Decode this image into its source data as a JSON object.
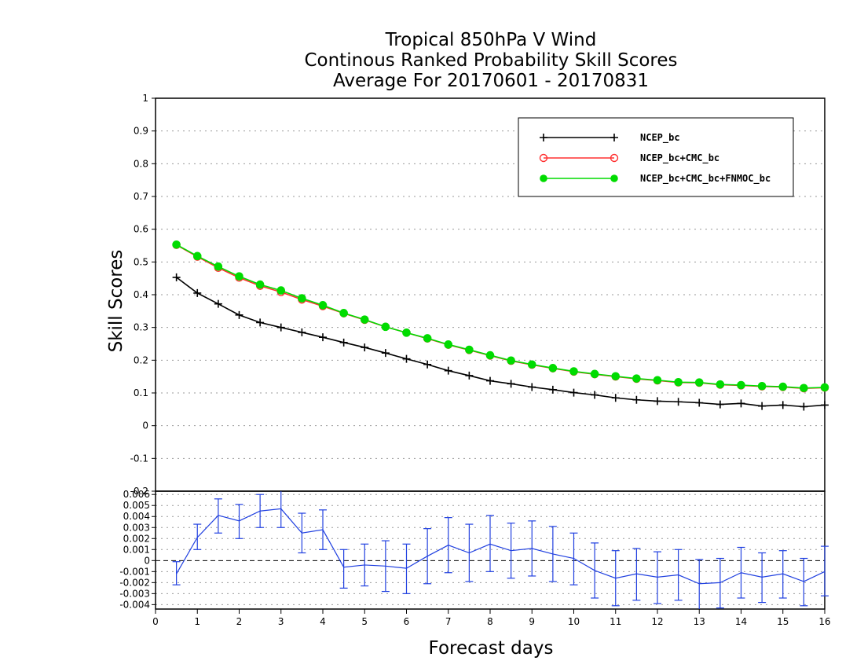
{
  "chart_data": [
    {
      "type": "line",
      "panel": "main",
      "title": [
        "Tropical 850hPa V Wind",
        "Continous Ranked Probability Skill Scores",
        "Average For 20170601 - 20170831"
      ],
      "xlabel": "Forecast days",
      "ylabel": "Skill Scores",
      "xlim": [
        0,
        16
      ],
      "ylim": [
        -0.2,
        1
      ],
      "yticks": [
        -0.2,
        -0.1,
        0,
        0.1,
        0.2,
        0.3,
        0.4,
        0.5,
        0.6,
        0.7,
        0.8,
        0.9,
        1
      ],
      "ytick_labels": [
        "-0.2",
        "-0.1",
        "0",
        "0.1",
        "0.2",
        "0.3",
        "0.4",
        "0.5",
        "0.6",
        "0.7",
        "0.8",
        "0.9",
        "1"
      ],
      "grid": true,
      "legend_position": "top-right",
      "x": [
        0.5,
        1.0,
        1.5,
        2.0,
        2.5,
        3.0,
        3.5,
        4.0,
        4.5,
        5.0,
        5.5,
        6.0,
        6.5,
        7.0,
        7.5,
        8.0,
        8.5,
        9.0,
        9.5,
        10.0,
        10.5,
        11.0,
        11.5,
        12.0,
        12.5,
        13.0,
        13.5,
        14.0,
        14.5,
        15.0,
        15.5,
        16.0
      ],
      "series": [
        {
          "name": "NCEP_bc",
          "color": "#000000",
          "marker": "plus",
          "values": [
            0.453,
            0.405,
            0.372,
            0.338,
            0.315,
            0.3,
            0.285,
            0.27,
            0.254,
            0.239,
            0.222,
            0.204,
            0.187,
            0.168,
            0.153,
            0.137,
            0.128,
            0.118,
            0.11,
            0.101,
            0.094,
            0.085,
            0.079,
            0.075,
            0.073,
            0.07,
            0.065,
            0.068,
            0.06,
            0.063,
            0.058,
            0.063
          ]
        },
        {
          "name": "NCEP_bc+CMC_bc",
          "color": "#ff3030",
          "marker": "open-circle",
          "values": [
            0.552,
            0.516,
            0.482,
            0.452,
            0.427,
            0.408,
            0.385,
            0.365,
            0.343,
            0.323,
            0.302,
            0.284,
            0.266,
            0.247,
            0.231,
            0.214,
            0.198,
            0.186,
            0.175,
            0.165,
            0.157,
            0.15,
            0.143,
            0.138,
            0.132,
            0.131,
            0.125,
            0.123,
            0.12,
            0.118,
            0.114,
            0.116
          ]
        },
        {
          "name": "NCEP_bc+CMC_bc+FNMOC_bc",
          "color": "#00dc00",
          "marker": "filled-circle",
          "values": [
            0.553,
            0.518,
            0.486,
            0.456,
            0.431,
            0.413,
            0.389,
            0.368,
            0.344,
            0.324,
            0.302,
            0.284,
            0.267,
            0.248,
            0.232,
            0.215,
            0.199,
            0.187,
            0.176,
            0.166,
            0.158,
            0.151,
            0.144,
            0.139,
            0.133,
            0.132,
            0.126,
            0.124,
            0.121,
            0.119,
            0.115,
            0.117
          ]
        }
      ]
    },
    {
      "type": "line",
      "panel": "difference",
      "xlabel": "Forecast days",
      "xlim": [
        0,
        16
      ],
      "xticks": [
        0,
        1,
        2,
        3,
        4,
        5,
        6,
        7,
        8,
        9,
        10,
        11,
        12,
        13,
        14,
        15,
        16
      ],
      "xtick_labels": [
        "0",
        "1",
        "2",
        "3",
        "4",
        "5",
        "6",
        "7",
        "8",
        "9",
        "10",
        "11",
        "12",
        "13",
        "14",
        "15",
        "16"
      ],
      "ylim": [
        -0.0044,
        0.0063
      ],
      "yticks": [
        -0.004,
        -0.003,
        -0.002,
        -0.001,
        0,
        0.001,
        0.002,
        0.003,
        0.004,
        0.005,
        0.006
      ],
      "ytick_labels": [
        "-0.004",
        "-0.003",
        "-0.002",
        "-0.001",
        "0",
        "0.001",
        "0.002",
        "0.003",
        "0.004",
        "0.005",
        "0.006"
      ],
      "grid": true,
      "x": [
        0.5,
        1.0,
        1.5,
        2.0,
        2.5,
        3.0,
        3.5,
        4.0,
        4.5,
        5.0,
        5.5,
        6.0,
        6.5,
        7.0,
        7.5,
        8.0,
        8.5,
        9.0,
        9.5,
        10.0,
        10.5,
        11.0,
        11.5,
        12.0,
        12.5,
        13.0,
        13.5,
        14.0,
        14.5,
        15.0,
        15.5,
        16.0
      ],
      "series": [
        {
          "color": "#2040e0",
          "values": [
            -0.0012,
            0.0021,
            0.0041,
            0.0036,
            0.0045,
            0.0047,
            0.0025,
            0.0028,
            -0.0006,
            -0.0004,
            -0.0005,
            -0.0007,
            0.0004,
            0.0014,
            0.0007,
            0.0015,
            0.0009,
            0.0011,
            0.0006,
            0.0002,
            -0.0009,
            -0.0016,
            -0.0012,
            -0.0015,
            -0.0013,
            -0.0021,
            -0.002,
            -0.0011,
            -0.0015,
            -0.0012,
            -0.0019,
            -0.001
          ],
          "error_low": [
            -0.0022,
            0.001,
            0.0025,
            0.002,
            0.003,
            0.003,
            0.0007,
            0.001,
            -0.0025,
            -0.0023,
            -0.0028,
            -0.003,
            -0.0021,
            -0.0011,
            -0.0019,
            -0.001,
            -0.0016,
            -0.0014,
            -0.0019,
            -0.0022,
            -0.0034,
            -0.0041,
            -0.0036,
            -0.0039,
            -0.0036,
            -0.0045,
            -0.0043,
            -0.0034,
            -0.0038,
            -0.0034,
            -0.0041,
            -0.0032
          ],
          "error_high": [
            -0.0001,
            0.0033,
            0.0056,
            0.0051,
            0.006,
            0.0065,
            0.0043,
            0.0046,
            0.001,
            0.0015,
            0.0018,
            0.0015,
            0.0029,
            0.0039,
            0.0033,
            0.0041,
            0.0034,
            0.0036,
            0.0031,
            0.0025,
            0.0016,
            0.0009,
            0.0011,
            0.0008,
            0.001,
            0.0001,
            0.0002,
            0.0012,
            0.0007,
            0.0009,
            0.0002,
            0.0013
          ]
        }
      ]
    }
  ]
}
